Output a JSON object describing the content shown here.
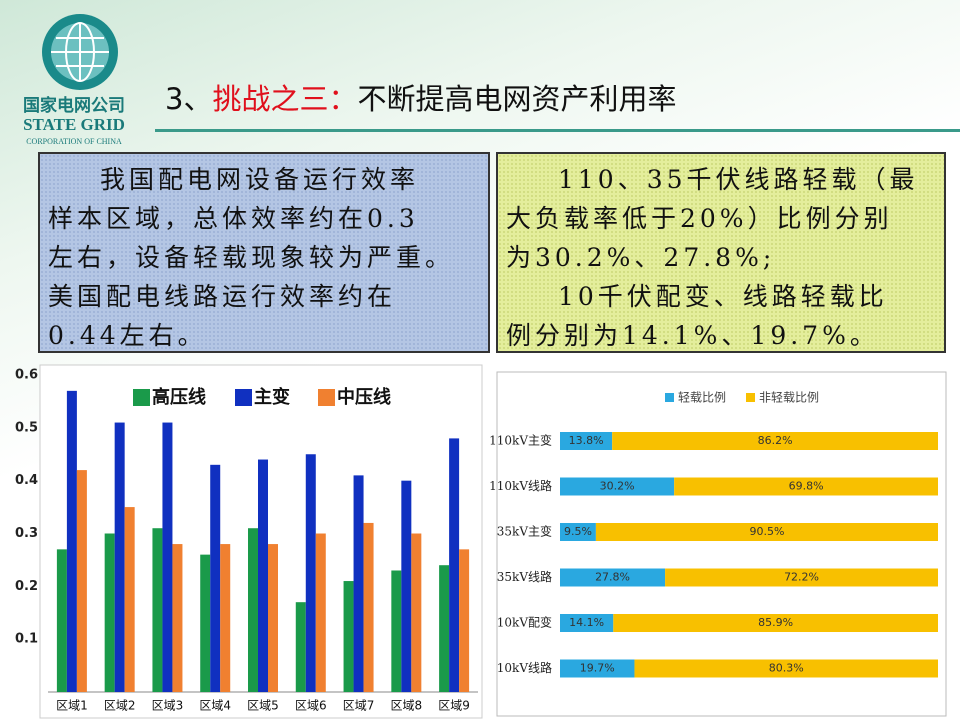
{
  "logo": {
    "cn": "国家电网公司",
    "en": "STATE GRID",
    "sub": "CORPORATION OF CHINA"
  },
  "header": {
    "title_parts": [
      "3、",
      "挑战之三：",
      "不断提高电网资产利用率"
    ]
  },
  "left_box": {
    "lines": [
      "我国配电网设备运行效率",
      "样本区域，总体效率约在0.3",
      "左右，设备轻载现象较为严重。",
      "美国配电线路运行效率约在",
      "0.44左右。"
    ]
  },
  "right_box": {
    "lines": [
      "110、35千伏线路轻载（最",
      "大负载率低于20%）比例分别",
      "为30.2%、27.8%;",
      "10千伏配变、线路轻载比",
      "例分别为14.1%、19.7%。"
    ]
  },
  "chart_data": [
    {
      "type": "bar",
      "categories": [
        "区域1",
        "区域2",
        "区域3",
        "区域4",
        "区域5",
        "区域6",
        "区域7",
        "区域8",
        "区域9"
      ],
      "series": [
        {
          "name": "高压线",
          "color": "#1a9a4a",
          "values": [
            0.27,
            0.3,
            0.31,
            0.26,
            0.31,
            0.17,
            0.21,
            0.23,
            0.24
          ]
        },
        {
          "name": "主变",
          "color": "#1030c0",
          "values": [
            0.57,
            0.51,
            0.51,
            0.43,
            0.44,
            0.45,
            0.41,
            0.4,
            0.48
          ]
        },
        {
          "name": "中压线",
          "color": "#f08030",
          "values": [
            0.42,
            0.35,
            0.28,
            0.28,
            0.28,
            0.3,
            0.32,
            0.3,
            0.27
          ]
        }
      ],
      "ylim": [
        0,
        0.6
      ],
      "yticks": [
        0.1,
        0.2,
        0.3,
        0.4,
        0.5,
        0.6
      ],
      "grid": false
    },
    {
      "type": "stacked_barh",
      "categories": [
        "110kV主变",
        "110kV线路",
        "35kV主变",
        "35kV线路",
        "10kV配变",
        "10kV线路"
      ],
      "series": [
        {
          "name": "轻载比例",
          "color": "#2aa8e0",
          "values": [
            13.8,
            30.2,
            9.5,
            27.8,
            14.1,
            19.7
          ],
          "value_labels": [
            "13.8%",
            "30.2%",
            "9.5%",
            "27.8%",
            "14.1%",
            "19.7%"
          ]
        },
        {
          "name": "非轻载比例",
          "color": "#f8c000",
          "values": [
            86.2,
            69.8,
            90.5,
            72.2,
            85.9,
            80.3
          ],
          "value_labels": [
            "86.2%",
            "69.8%",
            "90.5%",
            "72.2%",
            "85.9%",
            "80.3%"
          ]
        }
      ],
      "xlim": [
        0,
        100
      ]
    }
  ]
}
